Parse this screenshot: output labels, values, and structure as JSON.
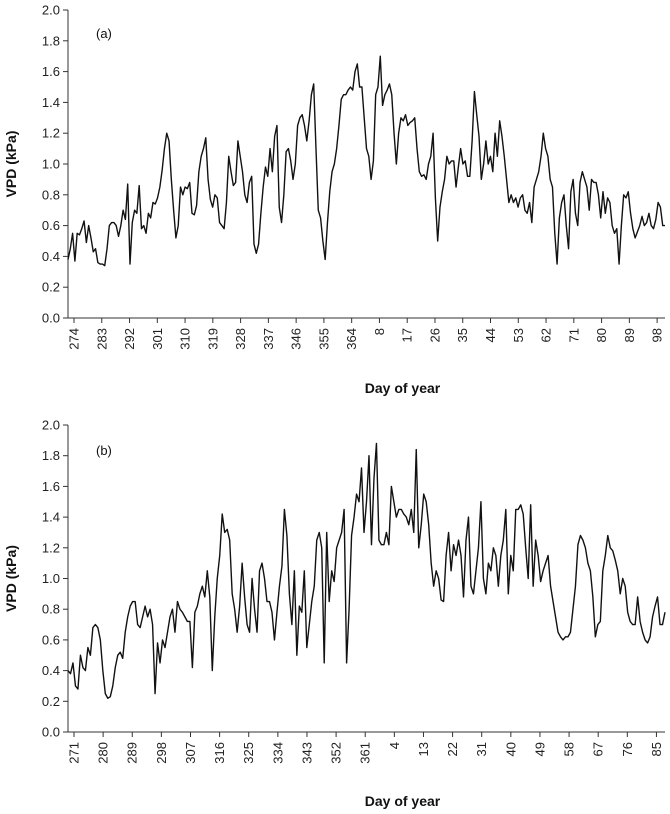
{
  "chart_data": [
    {
      "type": "line",
      "panel_label": "(a)",
      "xlabel": "Day of year",
      "ylabel": "VPD (kPa)",
      "ylim": [
        0,
        2
      ],
      "yticks": [
        "0.0",
        "0.2",
        "0.4",
        "0.6",
        "0.8",
        "1.0",
        "1.2",
        "1.4",
        "1.6",
        "1.8",
        "2.0"
      ],
      "xtick_labels": [
        "274",
        "283",
        "292",
        "301",
        "310",
        "319",
        "328",
        "337",
        "346",
        "355",
        "364",
        "8",
        "17",
        "26",
        "35",
        "44",
        "53",
        "62",
        "71",
        "80",
        "89",
        "98"
      ],
      "grid": false,
      "series": [
        {
          "values": [
            0.38,
            0.45,
            0.55,
            0.37,
            0.55,
            0.54,
            0.58,
            0.63,
            0.49,
            0.6,
            0.52,
            0.43,
            0.45,
            0.36,
            0.35,
            0.35,
            0.34,
            0.45,
            0.6,
            0.62,
            0.62,
            0.6,
            0.53,
            0.6,
            0.7,
            0.64,
            0.87,
            0.35,
            0.62,
            0.7,
            0.68,
            0.86,
            0.58,
            0.6,
            0.55,
            0.68,
            0.65,
            0.75,
            0.74,
            0.78,
            0.85,
            0.96,
            1.1,
            1.2,
            1.15,
            0.9,
            0.7,
            0.52,
            0.6,
            0.85,
            0.8,
            0.85,
            0.84,
            0.88,
            0.68,
            0.67,
            0.73,
            0.95,
            1.05,
            1.1,
            1.17,
            0.9,
            0.77,
            0.72,
            0.8,
            0.78,
            0.62,
            0.6,
            0.58,
            0.75,
            1.05,
            0.95,
            0.86,
            0.88,
            1.15,
            1.05,
            0.95,
            0.8,
            0.75,
            0.88,
            0.92,
            0.48,
            0.42,
            0.48,
            0.68,
            0.85,
            0.98,
            0.92,
            1.1,
            0.95,
            1.18,
            1.25,
            0.72,
            0.62,
            0.8,
            1.08,
            1.1,
            1.02,
            0.9,
            1.0,
            1.25,
            1.3,
            1.32,
            1.25,
            1.15,
            1.28,
            1.45,
            1.52,
            1.1,
            0.7,
            0.65,
            0.5,
            0.38,
            0.62,
            0.82,
            0.95,
            1.0,
            1.1,
            1.25,
            1.42,
            1.45,
            1.45,
            1.48,
            1.5,
            1.48,
            1.6,
            1.65,
            1.5,
            1.5,
            1.3,
            1.1,
            1.05,
            0.9,
            1.02,
            1.45,
            1.5,
            1.7,
            1.38,
            1.45,
            1.48,
            1.52,
            1.45,
            1.2,
            1.0,
            1.2,
            1.3,
            1.28,
            1.32,
            1.25,
            1.27,
            1.28,
            1.3,
            1.1,
            0.95,
            0.92,
            0.93,
            0.9,
            1.0,
            1.05,
            1.2,
            0.78,
            0.5,
            0.72,
            0.82,
            0.9,
            1.05,
            1.0,
            1.02,
            1.02,
            0.85,
            0.98,
            1.1,
            1.0,
            1.02,
            0.92,
            0.92,
            1.15,
            1.47,
            1.32,
            1.18,
            0.9,
            1.0,
            1.15,
            1.0,
            1.05,
            0.95,
            1.2,
            1.05,
            1.28,
            1.18,
            1.05,
            0.9,
            0.75,
            0.8,
            0.75,
            0.78,
            0.72,
            0.78,
            0.8,
            0.7,
            0.68,
            0.75,
            0.62,
            0.85,
            0.9,
            0.95,
            1.05,
            1.2,
            1.1,
            1.05,
            0.9,
            0.85,
            0.55,
            0.35,
            0.65,
            0.75,
            0.8,
            0.6,
            0.45,
            0.82,
            0.9,
            0.68,
            0.6,
            0.88,
            0.95,
            0.9,
            0.85,
            0.7,
            0.9,
            0.88,
            0.88,
            0.8,
            0.65,
            0.82,
            0.68,
            0.78,
            0.75,
            0.6,
            0.55,
            0.58,
            0.35,
            0.6,
            0.8,
            0.78,
            0.82,
            0.68,
            0.58,
            0.52,
            0.56,
            0.6,
            0.66,
            0.6,
            0.62,
            0.68,
            0.6,
            0.58,
            0.64,
            0.75,
            0.72,
            0.6,
            0.6
          ]
        }
      ]
    },
    {
      "type": "line",
      "panel_label": "(b)",
      "xlabel": "Day of year",
      "ylabel": "VPD (kPa)",
      "ylim": [
        0,
        2
      ],
      "yticks": [
        "0.0",
        "0.2",
        "0.4",
        "0.6",
        "0.8",
        "1.0",
        "1.2",
        "1.4",
        "1.6",
        "1.8",
        "2.0"
      ],
      "xtick_labels": [
        "271",
        "280",
        "289",
        "298",
        "307",
        "316",
        "325",
        "334",
        "343",
        "352",
        "361",
        "4",
        "13",
        "22",
        "31",
        "40",
        "49",
        "58",
        "67",
        "76",
        "85"
      ],
      "grid": false,
      "series": [
        {
          "values": [
            0.4,
            0.38,
            0.45,
            0.3,
            0.28,
            0.5,
            0.42,
            0.4,
            0.55,
            0.5,
            0.68,
            0.7,
            0.68,
            0.6,
            0.4,
            0.25,
            0.22,
            0.23,
            0.3,
            0.42,
            0.5,
            0.52,
            0.48,
            0.65,
            0.75,
            0.82,
            0.85,
            0.85,
            0.7,
            0.68,
            0.75,
            0.82,
            0.75,
            0.8,
            0.7,
            0.25,
            0.58,
            0.45,
            0.6,
            0.55,
            0.65,
            0.75,
            0.8,
            0.65,
            0.85,
            0.8,
            0.78,
            0.75,
            0.72,
            0.72,
            0.42,
            0.78,
            0.82,
            0.9,
            0.95,
            0.88,
            1.05,
            0.88,
            0.4,
            0.75,
            1.0,
            1.15,
            1.42,
            1.3,
            1.32,
            1.25,
            0.9,
            0.8,
            0.65,
            0.82,
            1.1,
            0.88,
            0.7,
            0.65,
            1.0,
            0.8,
            0.65,
            1.05,
            1.1,
            1.0,
            0.85,
            0.85,
            0.78,
            0.6,
            0.78,
            0.95,
            1.08,
            1.45,
            1.28,
            0.9,
            0.7,
            1.05,
            0.5,
            0.82,
            0.78,
            1.05,
            0.55,
            0.7,
            0.85,
            0.95,
            1.25,
            1.3,
            1.2,
            0.45,
            1.3,
            0.85,
            1.05,
            0.98,
            1.2,
            1.25,
            1.3,
            1.45,
            0.45,
            0.8,
            1.28,
            1.4,
            1.55,
            1.5,
            1.72,
            1.3,
            1.5,
            1.8,
            1.22,
            1.65,
            1.88,
            1.25,
            1.22,
            1.22,
            1.3,
            1.22,
            1.6,
            1.5,
            1.4,
            1.45,
            1.45,
            1.42,
            1.4,
            1.35,
            1.45,
            1.3,
            1.84,
            1.2,
            1.35,
            1.55,
            1.5,
            1.35,
            1.1,
            0.95,
            1.05,
            1.0,
            0.86,
            0.85,
            1.15,
            1.3,
            1.05,
            1.22,
            1.15,
            1.25,
            1.15,
            0.88,
            1.25,
            1.4,
            0.95,
            0.9,
            1.05,
            1.2,
            1.5,
            1.0,
            0.9,
            1.1,
            1.05,
            1.2,
            1.15,
            0.95,
            1.15,
            1.25,
            1.45,
            0.9,
            1.15,
            1.05,
            1.45,
            1.45,
            1.48,
            1.42,
            1.2,
            1.0,
            1.48,
            0.95,
            1.25,
            1.15,
            0.98,
            1.05,
            1.1,
            1.15,
            0.95,
            0.85,
            0.75,
            0.65,
            0.62,
            0.6,
            0.62,
            0.62,
            0.65,
            0.8,
            0.95,
            1.22,
            1.28,
            1.25,
            1.2,
            1.1,
            1.05,
            0.88,
            0.62,
            0.7,
            0.72,
            1.05,
            1.15,
            1.28,
            1.2,
            1.18,
            1.12,
            1.05,
            0.9,
            1.0,
            0.95,
            0.78,
            0.72,
            0.7,
            0.7,
            0.88,
            0.72,
            0.65,
            0.6,
            0.58,
            0.62,
            0.75,
            0.82,
            0.88,
            0.7,
            0.7,
            0.78
          ]
        }
      ]
    }
  ]
}
